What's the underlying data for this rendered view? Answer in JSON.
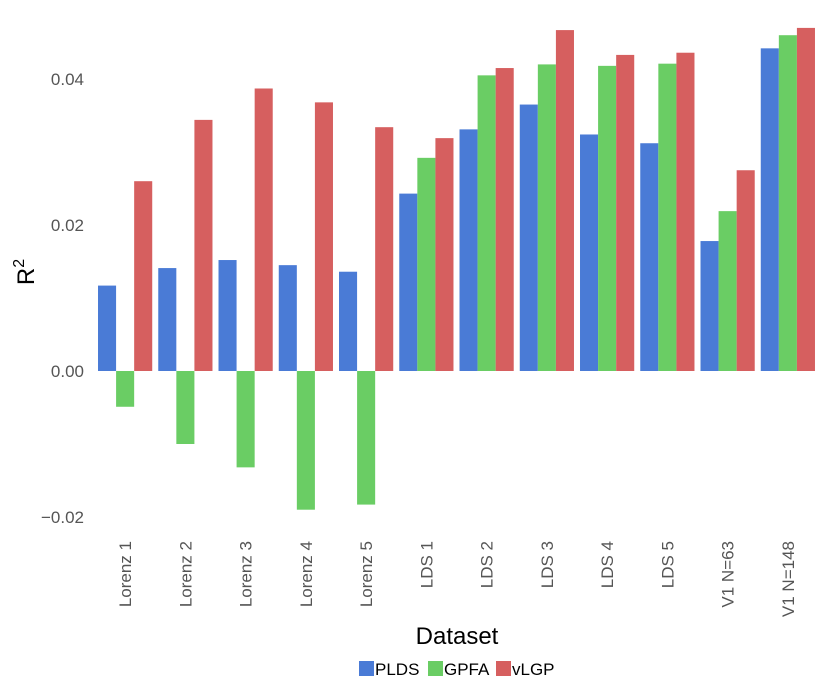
{
  "chart_data": {
    "type": "bar",
    "title": "",
    "xlabel": "Dataset",
    "ylabel": "R",
    "ylabel_superscript": "2",
    "ylim": [
      -0.023,
      0.0475
    ],
    "yticks": [
      -0.02,
      0.0,
      0.02,
      0.04
    ],
    "ytick_labels": [
      "−0.02",
      "0.00",
      "0.02",
      "0.04"
    ],
    "grid": false,
    "legend_position": "bottom",
    "categories": [
      "Lorenz 1",
      "Lorenz 2",
      "Lorenz 3",
      "Lorenz 4",
      "Lorenz 5",
      "LDS 1",
      "LDS 2",
      "LDS 3",
      "LDS 4",
      "LDS 5",
      "V1 N=63",
      "V1 N=148"
    ],
    "series": [
      {
        "name": "PLDS",
        "color": "#4a7bd6",
        "values": [
          0.0117,
          0.0141,
          0.0152,
          0.0145,
          0.0136,
          0.0243,
          0.0331,
          0.0365,
          0.0324,
          0.0312,
          0.0178,
          0.0442
        ]
      },
      {
        "name": "GPFA",
        "color": "#6acd64",
        "values": [
          -0.0049,
          -0.01,
          -0.0132,
          -0.019,
          -0.0183,
          0.0292,
          0.0405,
          0.042,
          0.0418,
          0.0421,
          0.0219,
          0.046
        ]
      },
      {
        "name": "vLGP",
        "color": "#d65f5f",
        "values": [
          0.026,
          0.0344,
          0.0387,
          0.0368,
          0.0334,
          0.0319,
          0.0415,
          0.0467,
          0.0433,
          0.0436,
          0.0275,
          0.047
        ]
      }
    ]
  }
}
